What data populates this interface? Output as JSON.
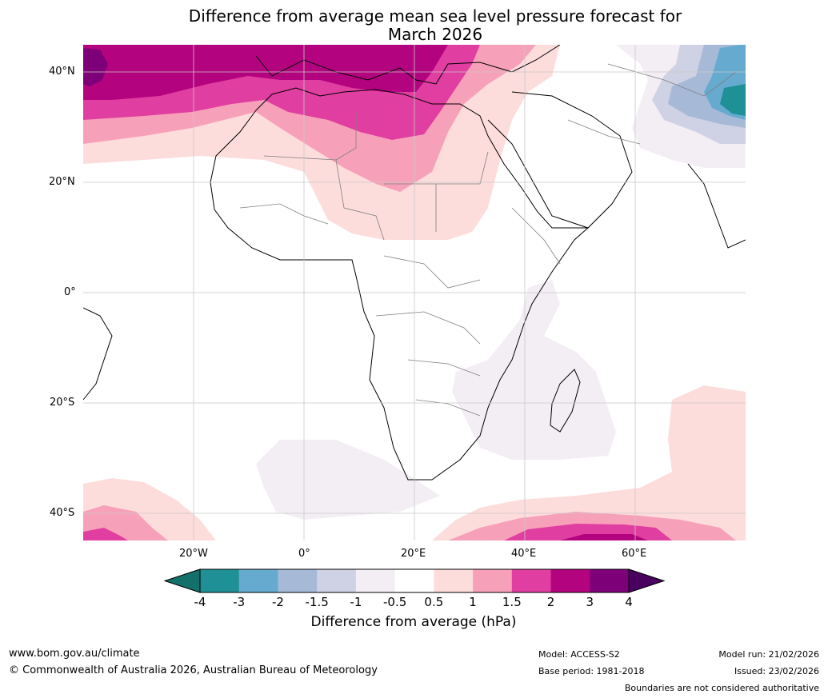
{
  "title_line1": "Difference from average mean sea level pressure forecast for",
  "title_line2": "March 2026",
  "lat_labels": [
    "40°N",
    "20°N",
    "0°",
    "20°S",
    "40°S"
  ],
  "lon_labels": [
    "20°W",
    "0°",
    "20°E",
    "40°E",
    "60°E"
  ],
  "colorbar": {
    "title": "Difference from average (hPa)",
    "tick_labels": [
      "-4",
      "-3",
      "-2",
      "-1.5",
      "-1",
      "-0.5",
      "0.5",
      "1",
      "1.5",
      "2",
      "3",
      "4"
    ],
    "colors": [
      "#14706a",
      "#1e9096",
      "#66aacf",
      "#a6bad8",
      "#cfd1e4",
      "#f3eef4",
      "#ffffff",
      "#fddcdc",
      "#f7a0b9",
      "#e03ea0",
      "#b4037f",
      "#7e0079",
      "#4a005e"
    ]
  },
  "footer": {
    "website": "www.bom.gov.au/climate",
    "copyright": "© Commonwealth of Australia 2026, Australian Bureau of Meteorology",
    "model": "Model: ACCESS-S2",
    "base_period": "Base period: 1981-2018",
    "model_run": "Model run: 21/02/2026",
    "issued": "Issued: 23/02/2026",
    "boundaries_note": "Boundaries are not considered authoritative"
  }
}
